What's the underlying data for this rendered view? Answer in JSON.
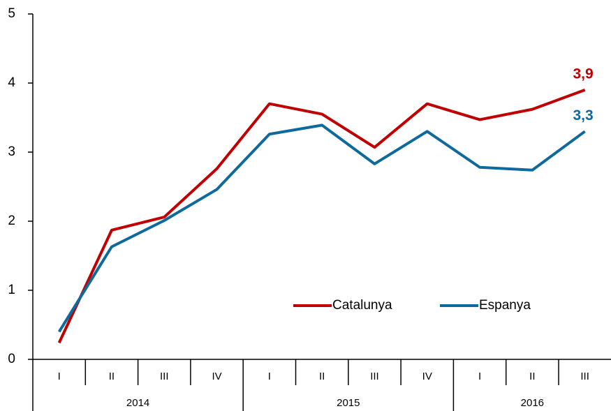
{
  "chart_data": {
    "type": "line",
    "categories": [
      "I",
      "II",
      "III",
      "IV",
      "I",
      "II",
      "III",
      "IV",
      "I",
      "II",
      "III"
    ],
    "x_groups": [
      {
        "label": "2014",
        "count": 4
      },
      {
        "label": "2015",
        "count": 4
      },
      {
        "label": "2016",
        "count": 3
      }
    ],
    "series": [
      {
        "name": "Catalunya",
        "color": "#c00000",
        "values": [
          0.24,
          1.87,
          2.06,
          2.76,
          3.7,
          3.55,
          3.07,
          3.7,
          3.47,
          3.62,
          3.9
        ],
        "value_labels": [
          null,
          null,
          null,
          null,
          null,
          null,
          null,
          null,
          null,
          null,
          "3,9"
        ]
      },
      {
        "name": "Espanya",
        "color": "#0e6a9c",
        "values": [
          0.4,
          1.63,
          2.01,
          2.46,
          3.26,
          3.39,
          2.83,
          3.3,
          2.78,
          2.74,
          3.3
        ],
        "value_labels": [
          null,
          null,
          null,
          null,
          null,
          null,
          null,
          null,
          null,
          null,
          "3,3"
        ]
      }
    ],
    "ylim": [
      0,
      5
    ],
    "yticks": [
      0,
      1,
      2,
      3,
      4,
      5
    ],
    "grid": false,
    "legend": "lower right"
  }
}
